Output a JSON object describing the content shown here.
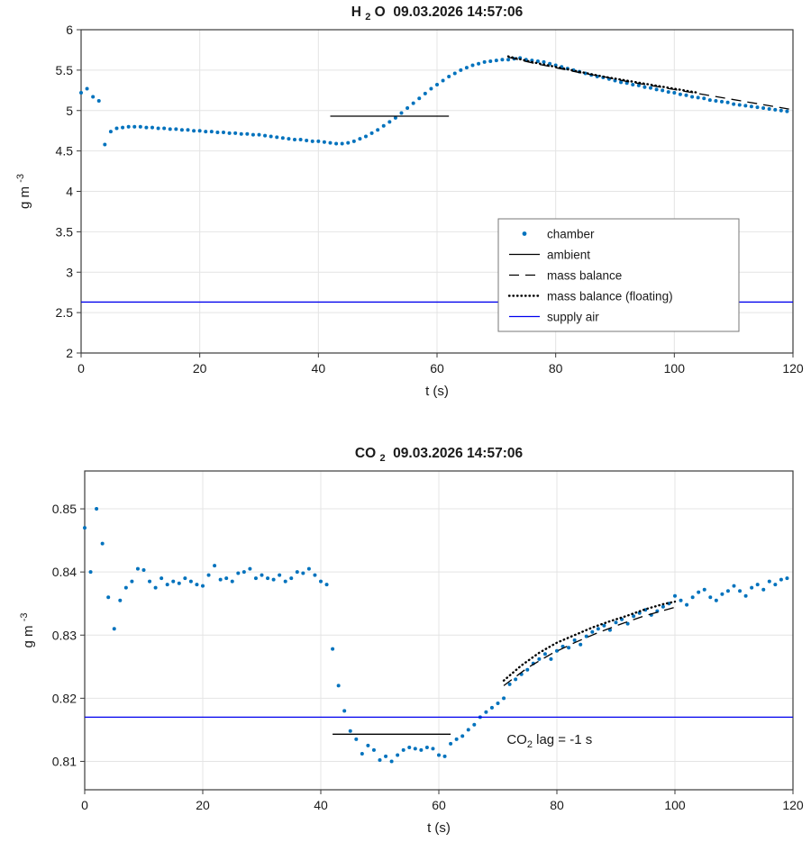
{
  "figure": {
    "background": "#ffffff"
  },
  "chart_data": [
    {
      "id": "h2o-chart",
      "type": "scatter",
      "title": {
        "pre": "H ",
        "sub": "2",
        "post": " O  09.03.2026 14:57:06"
      },
      "xlabel": "t (s)",
      "ylabel": {
        "pre": "g m ",
        "sup": "-3"
      },
      "xlim": [
        0,
        120
      ],
      "ylim": [
        2,
        6
      ],
      "xticks": [
        0,
        20,
        40,
        60,
        80,
        100,
        120
      ],
      "yticks": [
        2,
        2.5,
        3,
        3.5,
        4,
        4.5,
        5,
        5.5,
        6
      ],
      "grid": true,
      "legend": {
        "entries": [
          "chamber",
          "ambient",
          "mass balance",
          "mass balance (floating)",
          "supply air"
        ]
      },
      "series": [
        {
          "name": "chamber",
          "type": "scatter",
          "color": "#0072BD",
          "x_start": 0,
          "x_step": 1,
          "y": [
            5.22,
            5.27,
            5.17,
            5.12,
            4.58,
            4.74,
            4.78,
            4.79,
            4.8,
            4.8,
            4.8,
            4.79,
            4.79,
            4.78,
            4.78,
            4.77,
            4.77,
            4.76,
            4.76,
            4.75,
            4.75,
            4.74,
            4.74,
            4.73,
            4.73,
            4.72,
            4.72,
            4.71,
            4.71,
            4.7,
            4.7,
            4.69,
            4.68,
            4.67,
            4.66,
            4.65,
            4.64,
            4.64,
            4.63,
            4.62,
            4.62,
            4.61,
            4.6,
            4.59,
            4.59,
            4.6,
            4.62,
            4.65,
            4.68,
            4.72,
            4.76,
            4.81,
            4.86,
            4.91,
            4.97,
            5.03,
            5.09,
            5.15,
            5.21,
            5.27,
            5.32,
            5.37,
            5.42,
            5.46,
            5.5,
            5.53,
            5.56,
            5.58,
            5.6,
            5.61,
            5.62,
            5.63,
            5.63,
            5.64,
            5.65,
            5.63,
            5.62,
            5.61,
            5.6,
            5.58,
            5.56,
            5.54,
            5.52,
            5.5,
            5.48,
            5.46,
            5.44,
            5.42,
            5.41,
            5.39,
            5.37,
            5.35,
            5.34,
            5.32,
            5.31,
            5.29,
            5.28,
            5.26,
            5.25,
            5.23,
            5.22,
            5.2,
            5.19,
            5.17,
            5.16,
            5.15,
            5.13,
            5.12,
            5.11,
            5.1,
            5.08,
            5.07,
            5.06,
            5.05,
            5.04,
            5.03,
            5.02,
            5.01,
            5.0,
            4.99
          ]
        },
        {
          "name": "ambient",
          "type": "line",
          "line_style": "solid",
          "color": "#000000",
          "x": [
            42,
            62
          ],
          "y": [
            4.93,
            4.93
          ]
        },
        {
          "name": "mass balance",
          "type": "line",
          "line_style": "dashed",
          "color": "#000000",
          "x": [
            72,
            76,
            80,
            84,
            88,
            92,
            96,
            100,
            104,
            108,
            112,
            116,
            120
          ],
          "y": [
            5.66,
            5.59,
            5.53,
            5.47,
            5.42,
            5.36,
            5.31,
            5.26,
            5.21,
            5.16,
            5.11,
            5.06,
            5.01
          ]
        },
        {
          "name": "mass balance (floating)",
          "type": "line",
          "line_style": "dotted",
          "color": "#000000",
          "x": [
            72,
            76,
            80,
            84,
            88,
            92,
            96,
            100,
            104
          ],
          "y": [
            5.67,
            5.6,
            5.54,
            5.48,
            5.42,
            5.37,
            5.32,
            5.27,
            5.22
          ]
        },
        {
          "name": "supply air",
          "type": "line",
          "line_style": "solid",
          "color": "#0000EE",
          "x": [
            0,
            120
          ],
          "y": [
            2.63,
            2.63
          ]
        }
      ]
    },
    {
      "id": "co2-chart",
      "type": "scatter",
      "title": {
        "pre": "CO ",
        "sub": "2",
        "post": "  09.03.2026 14:57:06"
      },
      "xlabel": "t (s)",
      "ylabel": {
        "pre": "g m ",
        "sup": "-3"
      },
      "xlim": [
        0,
        120
      ],
      "ylim": [
        0.8055,
        0.856
      ],
      "xticks": [
        0,
        20,
        40,
        60,
        80,
        100,
        120
      ],
      "yticks": [
        0.81,
        0.82,
        0.83,
        0.84,
        0.85
      ],
      "grid": true,
      "annotations": [
        {
          "x": 71.5,
          "y": 0.8128,
          "text": {
            "pre": "CO",
            "sub": "2",
            "post": " lag = -1 s"
          }
        }
      ],
      "series": [
        {
          "name": "chamber",
          "type": "scatter",
          "color": "#0072BD",
          "x_start": 0,
          "x_step": 1,
          "y": [
            0.847,
            0.84,
            0.85,
            0.8445,
            0.836,
            0.831,
            0.8355,
            0.8375,
            0.8385,
            0.8405,
            0.8403,
            0.8385,
            0.8375,
            0.839,
            0.838,
            0.8385,
            0.8382,
            0.839,
            0.8385,
            0.838,
            0.8378,
            0.8395,
            0.841,
            0.8388,
            0.839,
            0.8385,
            0.8398,
            0.84,
            0.8405,
            0.839,
            0.8395,
            0.839,
            0.8388,
            0.8395,
            0.8385,
            0.839,
            0.84,
            0.8398,
            0.8405,
            0.8395,
            0.8385,
            0.838,
            0.8278,
            0.822,
            0.818,
            0.8148,
            0.8135,
            0.8112,
            0.8125,
            0.8118,
            0.8102,
            0.8108,
            0.81,
            0.811,
            0.8118,
            0.8122,
            0.812,
            0.8118,
            0.8122,
            0.812,
            0.811,
            0.8108,
            0.8128,
            0.8135,
            0.814,
            0.815,
            0.8158,
            0.817,
            0.8178,
            0.8185,
            0.8192,
            0.82,
            0.8222,
            0.823,
            0.8238,
            0.8245,
            0.8255,
            0.8262,
            0.827,
            0.8262,
            0.8275,
            0.8282,
            0.828,
            0.8292,
            0.8285,
            0.8298,
            0.8305,
            0.831,
            0.8315,
            0.8308,
            0.832,
            0.8325,
            0.8318,
            0.833,
            0.8335,
            0.834,
            0.8332,
            0.8338,
            0.8345,
            0.835,
            0.8362,
            0.8355,
            0.8348,
            0.836,
            0.8368,
            0.8372,
            0.836,
            0.8355,
            0.8365,
            0.837,
            0.8378,
            0.837,
            0.8362,
            0.8375,
            0.838,
            0.8372,
            0.8385,
            0.838,
            0.8388,
            0.839
          ]
        },
        {
          "name": "ambient",
          "type": "line",
          "line_style": "solid",
          "color": "#000000",
          "x": [
            42,
            62
          ],
          "y": [
            0.8143,
            0.8143
          ]
        },
        {
          "name": "mass balance",
          "type": "line",
          "line_style": "dashed",
          "color": "#000000",
          "x": [
            71,
            75,
            79,
            83,
            87,
            91,
            95,
            100
          ],
          "y": [
            0.822,
            0.8248,
            0.827,
            0.8288,
            0.8304,
            0.8318,
            0.8331,
            0.8344
          ]
        },
        {
          "name": "mass balance (floating)",
          "type": "line",
          "line_style": "dotted",
          "color": "#000000",
          "x": [
            71,
            74,
            77,
            80,
            83,
            86,
            89,
            92,
            95,
            98,
            100
          ],
          "y": [
            0.8228,
            0.8252,
            0.8272,
            0.8288,
            0.83,
            0.8312,
            0.8322,
            0.8331,
            0.8341,
            0.8349,
            0.8353
          ]
        },
        {
          "name": "supply air",
          "type": "line",
          "line_style": "solid",
          "color": "#0000EE",
          "x": [
            0,
            120
          ],
          "y": [
            0.817,
            0.817
          ]
        }
      ]
    }
  ]
}
